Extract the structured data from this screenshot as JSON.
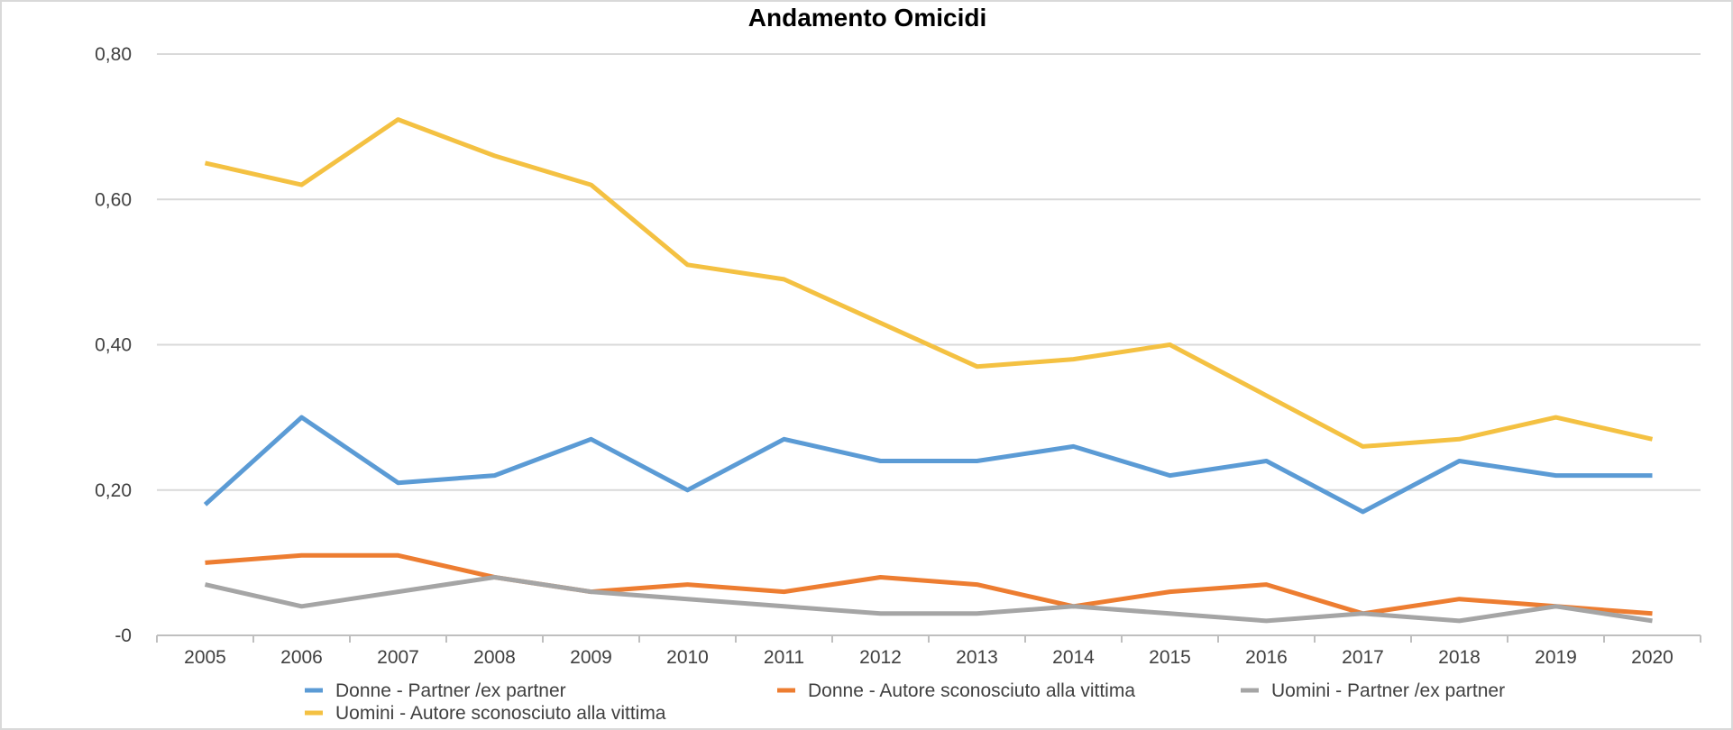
{
  "chart_data": {
    "type": "line",
    "title": "Andamento Omicidi",
    "xlabel": "",
    "ylabel": "",
    "categories": [
      "2005",
      "2006",
      "2007",
      "2008",
      "2009",
      "2010",
      "2011",
      "2012",
      "2013",
      "2014",
      "2015",
      "2016",
      "2017",
      "2018",
      "2019",
      "2020"
    ],
    "y_ticks": [
      0,
      0.2,
      0.4,
      0.6,
      0.8
    ],
    "y_tick_labels": [
      "-0",
      "0,20",
      "0,40",
      "0,60",
      "0,80"
    ],
    "ylim": [
      0,
      0.8
    ],
    "grid": true,
    "legend_position": "bottom",
    "series": [
      {
        "name": "Donne - Partner /ex partner",
        "color": "#5b9bd5",
        "values": [
          0.18,
          0.3,
          0.21,
          0.22,
          0.27,
          0.2,
          0.27,
          0.24,
          0.24,
          0.26,
          0.22,
          0.24,
          0.17,
          0.24,
          0.22,
          0.22
        ]
      },
      {
        "name": "Donne - Autore sconosciuto alla vittima",
        "color": "#ed7d31",
        "values": [
          0.1,
          0.11,
          0.11,
          0.08,
          0.06,
          0.07,
          0.06,
          0.08,
          0.07,
          0.04,
          0.06,
          0.07,
          0.03,
          0.05,
          0.04,
          0.03
        ]
      },
      {
        "name": "Uomini - Partner /ex partner",
        "color": "#a5a5a5",
        "values": [
          0.07,
          0.04,
          0.06,
          0.08,
          0.06,
          0.05,
          0.04,
          0.03,
          0.03,
          0.04,
          0.03,
          0.02,
          0.03,
          0.02,
          0.04,
          0.02
        ]
      },
      {
        "name": "Uomini - Autore sconosciuto alla vittima",
        "color": "#f4c142",
        "values": [
          0.65,
          0.62,
          0.71,
          0.66,
          0.62,
          0.51,
          0.49,
          0.43,
          0.37,
          0.38,
          0.4,
          0.33,
          0.26,
          0.27,
          0.3,
          0.27
        ]
      }
    ]
  }
}
